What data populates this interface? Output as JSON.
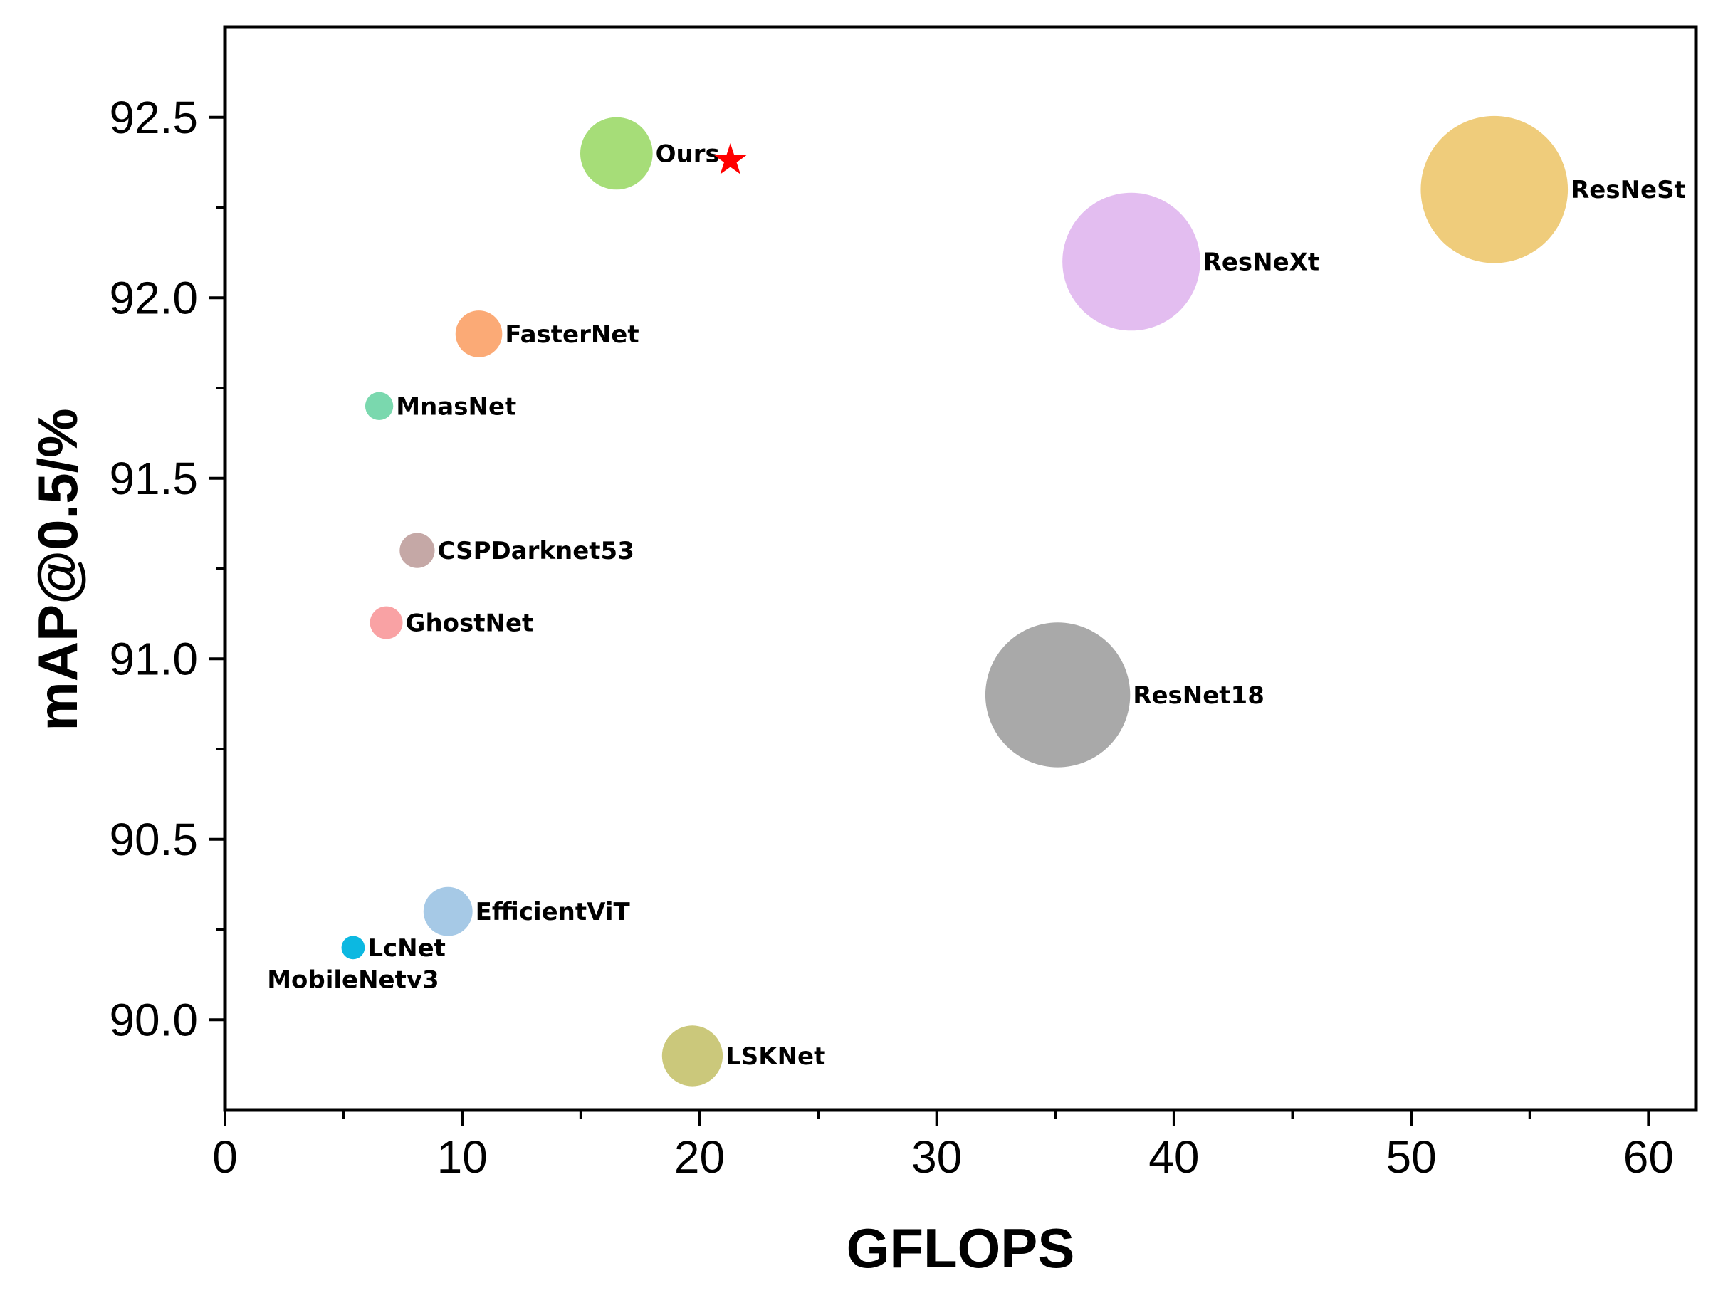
{
  "chart_data": {
    "type": "scatter",
    "subtype": "bubble",
    "title": "",
    "xlabel": "GFLOPS",
    "ylabel": "mAP@0.5/%",
    "xlim": [
      0,
      62
    ],
    "ylim": [
      89.75,
      92.75
    ],
    "xticks": [
      0,
      10,
      20,
      30,
      40,
      50,
      60
    ],
    "xtick_labels": [
      "0",
      "10",
      "20",
      "30",
      "40",
      "50",
      "60"
    ],
    "yticks": [
      90.0,
      90.5,
      91.0,
      91.5,
      92.0,
      92.5
    ],
    "ytick_labels": [
      "90.0",
      "90.5",
      "91.0",
      "91.5",
      "92.0",
      "92.5"
    ],
    "grid": false,
    "legend": "none",
    "points": [
      {
        "name": "Ours",
        "x": 16.5,
        "y": 92.4,
        "size": 3.1,
        "color": "#a6dd78"
      },
      {
        "name": "ResNeSt",
        "x": 53.5,
        "y": 92.3,
        "size": 6.3,
        "color": "#efcc7b"
      },
      {
        "name": "ResNeXt",
        "x": 38.2,
        "y": 92.1,
        "size": 5.9,
        "color": "#e3bdf0"
      },
      {
        "name": "FasterNet",
        "x": 10.7,
        "y": 91.9,
        "size": 2.0,
        "color": "#fbaa76"
      },
      {
        "name": "MnasNet",
        "x": 6.5,
        "y": 91.7,
        "size": 1.2,
        "color": "#7ad8ae"
      },
      {
        "name": "CSPDarknet53",
        "x": 8.1,
        "y": 91.3,
        "size": 1.5,
        "color": "#c5a8a6"
      },
      {
        "name": "GhostNet",
        "x": 6.8,
        "y": 91.1,
        "size": 1.4,
        "color": "#f9a2a4"
      },
      {
        "name": "ResNet18",
        "x": 35.1,
        "y": 90.9,
        "size": 6.2,
        "color": "#a9a9a9"
      },
      {
        "name": "EfficientViT",
        "x": 9.4,
        "y": 90.3,
        "size": 2.1,
        "color": "#a6c9e6"
      },
      {
        "name": "LcNet",
        "x": 5.4,
        "y": 90.2,
        "size": 1.0,
        "color": "#0cb8e1"
      },
      {
        "name": "LSKNet",
        "x": 19.7,
        "y": 89.9,
        "size": 2.6,
        "color": "#cbc87b"
      }
    ],
    "annotations": [
      {
        "text": "MobileNetv3",
        "x": 5.4,
        "y": 90.2,
        "anchor": "below",
        "ref": "LcNet"
      },
      {
        "text": "★",
        "x": 21.3,
        "y": 92.39,
        "color": "#ff0000",
        "ref": "Ours"
      }
    ]
  }
}
